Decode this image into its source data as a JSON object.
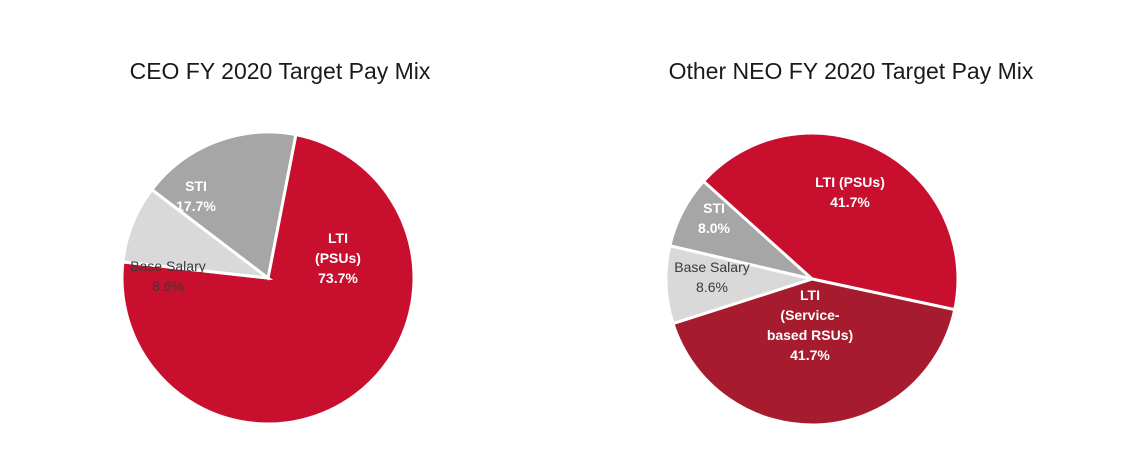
{
  "chart_data": [
    {
      "type": "pie",
      "title": "CEO FY 2020 Target Pay Mix",
      "slices": [
        {
          "label": [
            "LTI",
            "(PSUs)"
          ],
          "value_label": "73.7%",
          "value": 73.7,
          "color": "#c8102e",
          "text_color": "#ffffff",
          "bold": true
        },
        {
          "label": [
            "Base Salary"
          ],
          "value_label": "8.6%",
          "value": 8.6,
          "color": "#d9d9d9",
          "text_color": "#3a3a3a",
          "bold": false
        },
        {
          "label": [
            "STI"
          ],
          "value_label": "17.7%",
          "value": 17.7,
          "color": "#a6a6a6",
          "text_color": "#ffffff",
          "bold": true
        }
      ]
    },
    {
      "type": "pie",
      "title": "Other NEO FY 2020 Target Pay Mix",
      "slices": [
        {
          "label": [
            "LTI (PSUs)"
          ],
          "value_label": "41.7%",
          "value": 41.7,
          "color": "#c8102e",
          "text_color": "#ffffff",
          "bold": true
        },
        {
          "label": [
            "LTI",
            "(Service-",
            "based RSUs)"
          ],
          "value_label": "41.7%",
          "value": 41.7,
          "color": "#a61c2e",
          "text_color": "#ffffff",
          "bold": true
        },
        {
          "label": [
            "Base Salary"
          ],
          "value_label": "8.6%",
          "value": 8.6,
          "color": "#d9d9d9",
          "text_color": "#3a3a3a",
          "bold": false
        },
        {
          "label": [
            "STI"
          ],
          "value_label": "8.0%",
          "value": 8.0,
          "color": "#a6a6a6",
          "text_color": "#ffffff",
          "bold": true
        }
      ]
    }
  ]
}
